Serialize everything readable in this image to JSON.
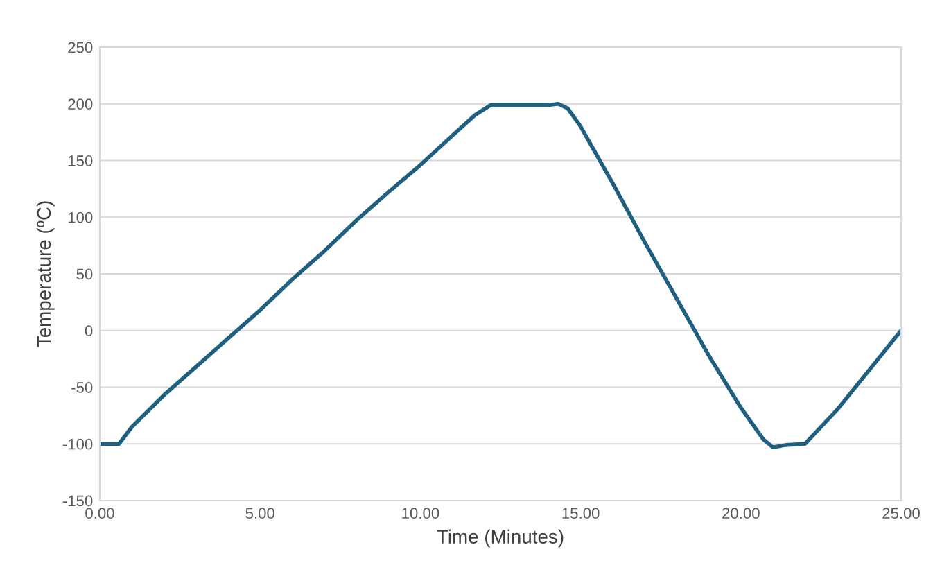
{
  "chart_data": {
    "type": "line",
    "xlabel": "Time (Minutes)",
    "ylabel": "Temperature (ºC)",
    "x": [
      0,
      0.6,
      1.0,
      2,
      3,
      4,
      5,
      6,
      7,
      8,
      9,
      10,
      11,
      11.7,
      12.2,
      13,
      14,
      14.3,
      14.6,
      15,
      15.5,
      16,
      17,
      18,
      19,
      20,
      20.7,
      21,
      21.4,
      22,
      22.4,
      23,
      24,
      25
    ],
    "series": [
      {
        "color": "#1f5f7f",
        "values": [
          -100,
          -100,
          -85,
          -57,
          -32,
          -7,
          18,
          45,
          70,
          97,
          122,
          146,
          172,
          190,
          199,
          199,
          199,
          200,
          196,
          180,
          155,
          130,
          78,
          28,
          -22,
          -68,
          -96,
          -103,
          -101,
          -100,
          -88,
          -70,
          -35,
          0
        ]
      }
    ],
    "xlim": [
      0,
      25
    ],
    "xticks": [
      {
        "value": 0,
        "label": "0.00"
      },
      {
        "value": 5,
        "label": "5.00"
      },
      {
        "value": 10,
        "label": "10.00"
      },
      {
        "value": 15,
        "label": "15.00"
      },
      {
        "value": 20,
        "label": "20.00"
      },
      {
        "value": 25,
        "label": "25.00"
      }
    ],
    "ylim": [
      -150,
      250
    ],
    "yticks": [
      -150,
      -100,
      -50,
      0,
      50,
      100,
      150,
      200,
      250
    ],
    "grid": "y",
    "legend": false,
    "marker": "none",
    "line_style": "solid"
  }
}
